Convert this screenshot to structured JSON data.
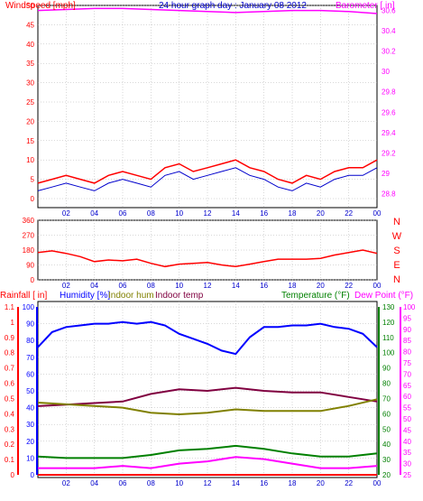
{
  "title": "24 hour graph day : January 08 2012",
  "x_ticks": [
    "02",
    "04",
    "06",
    "08",
    "10",
    "12",
    "14",
    "16",
    "18",
    "20",
    "22",
    "00"
  ],
  "colors": {
    "windspeed": "#ff0000",
    "wind_avg": "#0000cc",
    "barometer": "#ff00ff",
    "direction": "#ff0000",
    "rainfall": "#ff0000",
    "humidity": "#0000ff",
    "indoor_hum": "#808000",
    "indoor_temp": "#800040",
    "temperature": "#008000",
    "dew_point": "#ff00ff",
    "zero_line": "#ff0000",
    "grid": "#b0b0b0",
    "frame": "#000000"
  },
  "panel1": {
    "left_label": "Windspeed [mph]",
    "right_label": "Barometer [ in]",
    "left_ticks": [
      "0",
      "5",
      "10",
      "15",
      "20",
      "25",
      "30",
      "35",
      "40",
      "45",
      "50"
    ],
    "right_ticks": [
      "28.8",
      "29",
      "29.2",
      "29.4",
      "29.6",
      "29.8",
      "30",
      "30.2",
      "30.4",
      "30.6"
    ]
  },
  "panel2": {
    "left_ticks": [
      "0",
      "90",
      "180",
      "270",
      "360"
    ],
    "compass": [
      "N",
      "W",
      "S",
      "E",
      "N"
    ]
  },
  "panel3": {
    "label_rain": "Rainfall [ in]",
    "label_hum": "Humidity [%]",
    "label_inhum": "Indoor hum",
    "label_intemp": "Indoor temp",
    "label_temp": "Temperature (°F)",
    "label_dew": "Dew Point (°F)",
    "rain_ticks": [
      "0",
      "0.1",
      "0.2",
      "0.3",
      "0.4",
      "0.5",
      "0.6",
      "0.7",
      "0.8",
      "0.9",
      "1",
      "1.1"
    ],
    "hum_ticks": [
      "0",
      "10",
      "20",
      "30",
      "40",
      "50",
      "60",
      "70",
      "80",
      "90",
      "100"
    ],
    "temp_ticks": [
      "20",
      "30",
      "40",
      "50",
      "60",
      "70",
      "80",
      "90",
      "100",
      "110",
      "120",
      "130"
    ],
    "dew_ticks": [
      "25",
      "30",
      "35",
      "40",
      "45",
      "50",
      "55",
      "60",
      "65",
      "70",
      "75",
      "80",
      "85",
      "90",
      "95",
      "100"
    ]
  },
  "chart_data": [
    {
      "type": "line",
      "x_unit": "hour",
      "x_ticks": [
        "02",
        "04",
        "06",
        "08",
        "10",
        "12",
        "14",
        "16",
        "18",
        "20",
        "22",
        "00"
      ],
      "series": [
        {
          "name": "Windspeed [mph]",
          "axis": "left",
          "x": [
            0,
            1,
            2,
            3,
            4,
            5,
            6,
            7,
            8,
            9,
            10,
            11,
            12,
            13,
            14,
            15,
            16,
            17,
            18,
            19,
            20,
            21,
            22,
            23,
            24
          ],
          "y": [
            4,
            5,
            6,
            5,
            4,
            6,
            7,
            6,
            5,
            8,
            9,
            7,
            8,
            9,
            10,
            8,
            7,
            5,
            4,
            6,
            5,
            7,
            8,
            8,
            10
          ]
        },
        {
          "name": "Barometer [ in]",
          "axis": "right",
          "x": [
            0,
            2,
            4,
            6,
            8,
            10,
            12,
            14,
            16,
            18,
            20,
            22,
            24
          ],
          "y": [
            30.6,
            30.61,
            30.62,
            30.62,
            30.61,
            30.6,
            30.59,
            30.58,
            30.59,
            30.6,
            30.6,
            30.59,
            30.57
          ]
        }
      ]
    },
    {
      "type": "line",
      "x_unit": "hour",
      "series": [
        {
          "name": "Wind direction",
          "x": [
            0,
            1,
            2,
            3,
            4,
            5,
            6,
            7,
            8,
            9,
            10,
            11,
            12,
            13,
            14,
            15,
            16,
            17,
            18,
            19,
            20,
            21,
            22,
            23,
            24
          ],
          "y": [
            165,
            175,
            160,
            140,
            110,
            120,
            115,
            125,
            100,
            80,
            95,
            100,
            105,
            90,
            80,
            95,
            110,
            125,
            125,
            125,
            130,
            150,
            165,
            180,
            160
          ]
        }
      ]
    },
    {
      "type": "line",
      "x_unit": "hour",
      "series": [
        {
          "name": "Humidity [%]",
          "x": [
            0,
            1,
            2,
            3,
            4,
            5,
            6,
            7,
            8,
            9,
            10,
            11,
            12,
            13,
            14,
            15,
            16,
            17,
            18,
            19,
            20,
            21,
            22,
            23,
            24
          ],
          "y": [
            76,
            85,
            88,
            89,
            90,
            90,
            91,
            90,
            91,
            89,
            84,
            81,
            78,
            74,
            72,
            82,
            88,
            88,
            89,
            89,
            90,
            88,
            87,
            84,
            76
          ]
        },
        {
          "name": "Indoor temp",
          "x": [
            0,
            2,
            4,
            6,
            8,
            10,
            12,
            14,
            16,
            18,
            20,
            22,
            24
          ],
          "y": [
            65,
            66,
            67,
            68,
            73,
            76,
            75,
            77,
            75,
            74,
            74,
            71,
            68
          ]
        },
        {
          "name": "Indoor hum",
          "x": [
            0,
            2,
            4,
            6,
            8,
            10,
            12,
            14,
            16,
            18,
            20,
            22,
            24
          ],
          "y": [
            43,
            42,
            41,
            40,
            37,
            36,
            37,
            39,
            38,
            38,
            38,
            41,
            45
          ]
        },
        {
          "name": "Temperature (°F)",
          "x": [
            0,
            2,
            4,
            6,
            8,
            10,
            12,
            14,
            16,
            18,
            20,
            22,
            24
          ],
          "y": [
            32,
            31,
            31,
            31,
            33,
            36,
            37,
            39,
            37,
            34,
            32,
            32,
            34
          ]
        },
        {
          "name": "Dew Point (°F)",
          "x": [
            0,
            2,
            4,
            6,
            8,
            10,
            12,
            14,
            16,
            18,
            20,
            22,
            24
          ],
          "y": [
            28,
            28,
            28,
            29,
            28,
            30,
            31,
            33,
            32,
            30,
            28,
            28,
            29
          ]
        },
        {
          "name": "Rainfall [ in]",
          "x": [
            0,
            24
          ],
          "y": [
            0,
            0
          ]
        }
      ]
    }
  ]
}
